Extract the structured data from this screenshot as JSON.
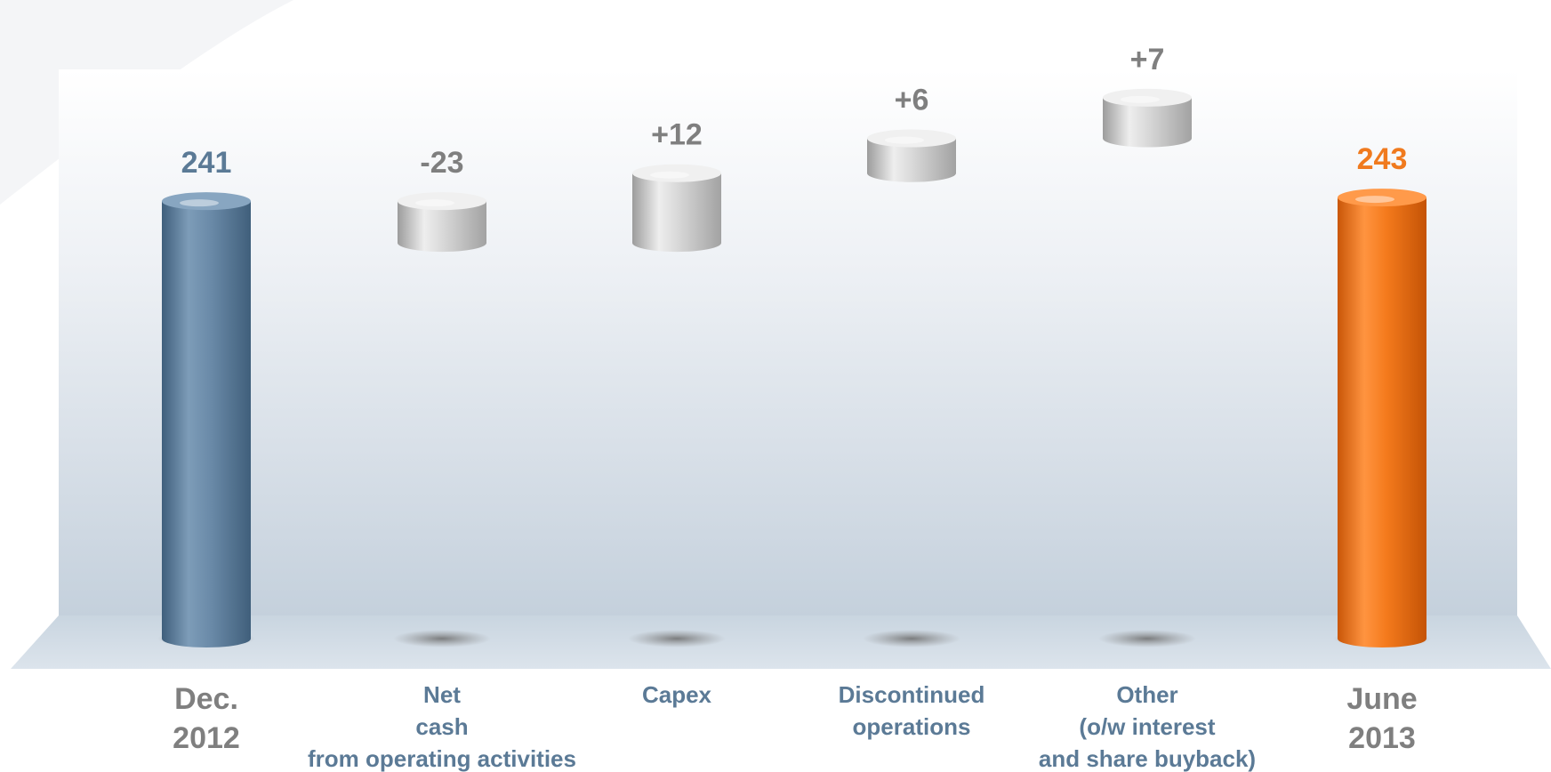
{
  "chart_data": {
    "type": "bar",
    "subtype": "waterfall",
    "categories": [
      [
        "Dec.",
        "2012"
      ],
      [
        "Net",
        "cash",
        "from operating activities"
      ],
      [
        "Capex"
      ],
      [
        "Discontinued",
        "operations"
      ],
      [
        "Other",
        "(o/w interest",
        "and share buyback)"
      ],
      [
        "June",
        "2013"
      ]
    ],
    "data_labels": [
      "241",
      "-23",
      "+12",
      "+6",
      "+7",
      "243"
    ],
    "values": [
      241,
      -23,
      12,
      6,
      7,
      243
    ],
    "kinds": [
      "total",
      "delta",
      "delta",
      "delta",
      "delta",
      "total"
    ],
    "colors": {
      "start_total": "#5e81a0",
      "end_total": "#f07a1e",
      "delta": "#c8c8c8",
      "start_label": "#5b7a96",
      "end_label": "#f07a1e",
      "delta_label": "#7f7f7f",
      "total_category_label": "#7f7f7f",
      "delta_category_label": "#5b7a96"
    },
    "legend": "none",
    "grid": false
  }
}
